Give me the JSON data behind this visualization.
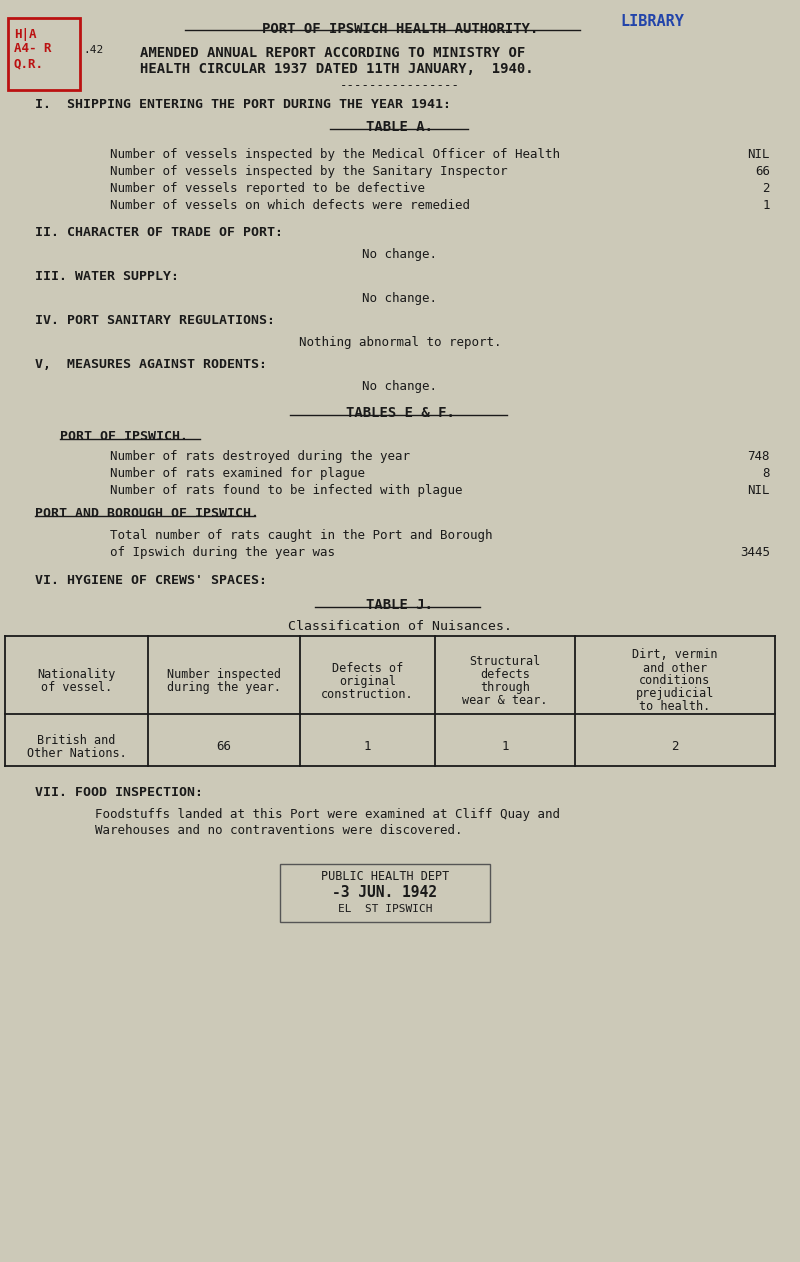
{
  "bg_color": "#ccc9b8",
  "font_color": "#1a1a1a",
  "title": "PORT OF IPSWICH HEALTH AUTHORITY.",
  "library_stamp": "LIBRARY",
  "subtitle1": "AMENDED ANNUAL REPORT ACCORDING TO MINISTRY OF",
  "subtitle2": "HEALTH CIRCULAR 1937 DATED 11TH JANUARY,  1940.",
  "dashes": "----------------",
  "section_i_header": "I.  SHIPPING ENTERING THE PORT DURING THE YEAR 1941:",
  "table_a_title": "TABLE A.",
  "table_a_rows": [
    [
      "Number of vessels inspected by the Medical Officer of Health",
      "NIL"
    ],
    [
      "Number of vessels inspected by the Sanitary Inspector",
      "66"
    ],
    [
      "Number of vessels reported to be defective",
      "2"
    ],
    [
      "Number of vessels on which defects were remedied",
      "1"
    ]
  ],
  "section_ii": "II. CHARACTER OF TRADE OF PORT:",
  "section_ii_body": "No change.",
  "section_iii": "III. WATER SUPPLY:",
  "section_iii_body": "No change.",
  "section_iv": "IV. PORT SANITARY REGULATIONS:",
  "section_iv_body": "Nothing abnormal to report.",
  "section_v": "V,  MEASURES AGAINST RODENTS:",
  "section_v_body": "No change.",
  "tables_ef_title": "TABLES E & F.",
  "port_ipswich_subhead": "PORT OF IPSWICH.",
  "rats_rows": [
    [
      "Number of rats destroyed during the year",
      "748"
    ],
    [
      "Number of rats examined for plague",
      "8"
    ],
    [
      "Number of rats found to be infected with plague",
      "NIL"
    ]
  ],
  "port_borough_subhead": "PORT AND BOROUGH OF IPSWICH.",
  "port_borough_body1": "Total number of rats caught in the Port and Borough",
  "port_borough_body2": "of Ipswich during the year was",
  "port_borough_value": "3445",
  "section_vi": "VI. HYGIENE OF CREWS' SPACES:",
  "table_j_title": "TABLE J.",
  "table_j_subtitle": "Classification of Nuisances.",
  "table_j_col_headers": [
    "Nationality\nof vessel.",
    "Number inspected\nduring the year.",
    "Defects of\noriginal\nconstruction.",
    "Structural\ndefects\nthrough\nwear & tear.",
    "Dirt, vermin\nand other\nconditions\nprejudicial\nto health."
  ],
  "table_j_data_row": [
    "British and\nOther Nations.",
    "66",
    "1",
    "1",
    "2"
  ],
  "section_vii": "VII. FOOD INSPECTION:",
  "section_vii_body1": "Foodstuffs landed at this Port were examined at Cliff Quay and",
  "section_vii_body2": "Warehouses and no contraventions were discovered.",
  "stamp_line1": "PUBLIC HEALTH DEPT",
  "stamp_line2": "-3 JUN. 1942",
  "stamp_line3": "EL  ST IPSWICH"
}
